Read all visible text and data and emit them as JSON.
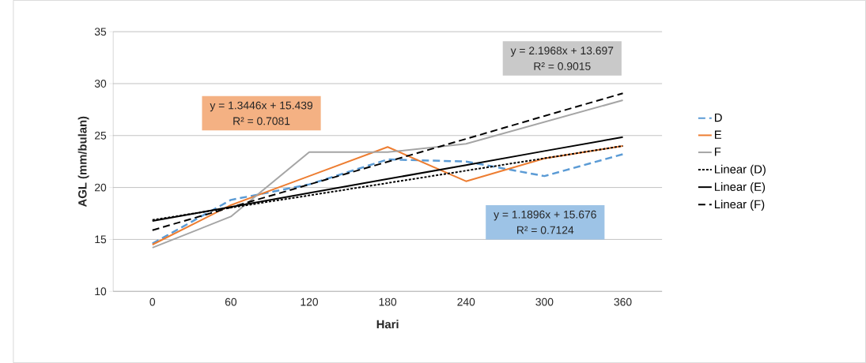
{
  "chart_data": {
    "type": "line",
    "xlabel": "Hari",
    "ylabel": "AGL (mm/bulan)",
    "categories": [
      "0",
      "60",
      "120",
      "180",
      "240",
      "300",
      "360"
    ],
    "ylim": [
      10,
      35
    ],
    "yticks": [
      10,
      15,
      20,
      25,
      30,
      35
    ],
    "grid": "y",
    "legend": "right",
    "series": [
      {
        "name": "D",
        "color": "#5b9bd5",
        "line_style": "dashed",
        "values": [
          14.6,
          18.8,
          20.3,
          22.7,
          22.5,
          21.1,
          23.2
        ]
      },
      {
        "name": "E",
        "color": "#ed7d31",
        "line_style": "solid",
        "values": [
          14.5,
          18.3,
          21.1,
          23.9,
          20.6,
          22.8,
          24.0
        ]
      },
      {
        "name": "F",
        "color": "#a5a5a5",
        "line_style": "solid",
        "values": [
          14.2,
          17.2,
          23.4,
          23.4,
          24.2,
          26.3,
          28.4
        ]
      },
      {
        "name": "Linear (D)",
        "color": "#000000",
        "line_style": "dotted",
        "values": [
          16.87,
          18.06,
          19.24,
          20.43,
          21.62,
          22.81,
          24.0
        ]
      },
      {
        "name": "Linear (E)",
        "color": "#000000",
        "line_style": "solid",
        "values": [
          16.78,
          18.13,
          19.47,
          20.82,
          22.16,
          23.51,
          24.85
        ]
      },
      {
        "name": "Linear (F)",
        "color": "#000000",
        "line_style": "dashed",
        "values": [
          15.89,
          18.09,
          20.29,
          22.48,
          24.68,
          26.88,
          29.07
        ]
      }
    ],
    "annotations": [
      "y = 1.1896x + 15.676",
      "R² = 0.7124",
      "y = 1.3446x + 15.439",
      "R² = 0.7081",
      "y = 2.1968x + 13.697",
      "R² = 0.9015"
    ]
  }
}
